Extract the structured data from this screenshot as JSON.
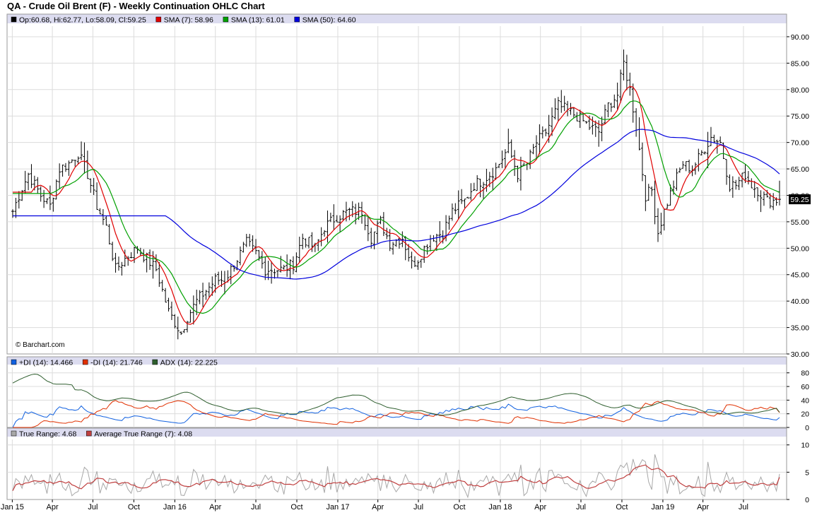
{
  "chart_data": [
    {
      "type": "line",
      "panel": "price",
      "title": "QA - Crude Oil Brent (F) - Weekly Continuation OHLC Chart",
      "attribution": "© Barchart.com",
      "ohlc_legend": "Op:60.68, Hi:62.77, Lo:58.09, Cl:59.25",
      "last_price_label": "59.25",
      "ylim": [
        30,
        92
      ],
      "yticks": [
        30,
        35,
        40,
        45,
        50,
        55,
        60,
        65,
        70,
        75,
        80,
        85,
        90
      ],
      "ytick_labels": [
        "30.00",
        "35.00",
        "40.00",
        "45.00",
        "50.00",
        "55.00",
        "60.00",
        "65.00",
        "70.00",
        "75.00",
        "80.00",
        "85.00",
        "90.00"
      ],
      "x": {
        "start": "2015-01-02",
        "end": "2019-09-20",
        "tick_dates": [
          "2015-01-01",
          "2015-04-01",
          "2015-07-01",
          "2015-10-01",
          "2016-01-01",
          "2016-04-01",
          "2016-07-01",
          "2016-10-01",
          "2017-01-01",
          "2017-04-01",
          "2017-07-01",
          "2017-10-01",
          "2018-01-01",
          "2018-04-01",
          "2018-07-01",
          "2018-10-01",
          "2019-01-01",
          "2019-04-01",
          "2019-07-01"
        ],
        "tick_labels": [
          "Jan 15",
          "Apr",
          "Jul",
          "Oct",
          "Jan 16",
          "Apr",
          "Jul",
          "Oct",
          "Jan 17",
          "Apr",
          "Jul",
          "Oct",
          "Jan 18",
          "Apr",
          "Jul",
          "Oct",
          "Jan 19",
          "Apr",
          "Jul"
        ]
      },
      "close_anchors": [
        [
          "2015-01-02",
          57
        ],
        [
          "2015-01-16",
          60
        ],
        [
          "2015-02-06",
          64
        ],
        [
          "2015-03-06",
          60
        ],
        [
          "2015-03-27",
          58
        ],
        [
          "2015-04-17",
          65
        ],
        [
          "2015-05-08",
          66
        ],
        [
          "2015-05-29",
          68
        ],
        [
          "2015-06-19",
          64
        ],
        [
          "2015-07-10",
          58
        ],
        [
          "2015-07-31",
          54
        ],
        [
          "2015-08-21",
          46
        ],
        [
          "2015-09-11",
          48
        ],
        [
          "2015-10-09",
          50
        ],
        [
          "2015-10-30",
          48
        ],
        [
          "2015-11-20",
          46
        ],
        [
          "2015-12-18",
          38
        ],
        [
          "2016-01-15",
          34
        ],
        [
          "2016-01-29",
          37
        ],
        [
          "2016-02-19",
          40
        ],
        [
          "2016-03-11",
          42
        ],
        [
          "2016-04-01",
          44
        ],
        [
          "2016-04-22",
          44
        ],
        [
          "2016-05-13",
          47
        ],
        [
          "2016-06-10",
          51
        ],
        [
          "2016-07-01",
          49
        ],
        [
          "2016-07-22",
          46
        ],
        [
          "2016-08-12",
          46
        ],
        [
          "2016-09-02",
          46
        ],
        [
          "2016-09-23",
          47
        ],
        [
          "2016-10-14",
          52
        ],
        [
          "2016-11-11",
          50
        ],
        [
          "2016-12-02",
          54
        ],
        [
          "2016-12-30",
          56
        ],
        [
          "2017-01-27",
          57
        ],
        [
          "2017-02-24",
          57
        ],
        [
          "2017-03-17",
          52
        ],
        [
          "2017-04-07",
          55
        ],
        [
          "2017-04-28",
          51
        ],
        [
          "2017-05-26",
          52
        ],
        [
          "2017-06-16",
          47
        ],
        [
          "2017-06-30",
          48
        ],
        [
          "2017-07-28",
          52
        ],
        [
          "2017-08-25",
          53
        ],
        [
          "2017-09-15",
          57
        ],
        [
          "2017-10-13",
          59
        ],
        [
          "2017-11-03",
          62
        ],
        [
          "2017-11-24",
          63
        ],
        [
          "2017-12-22",
          65
        ],
        [
          "2018-01-19",
          69
        ],
        [
          "2018-02-09",
          64
        ],
        [
          "2018-03-02",
          66
        ],
        [
          "2018-03-23",
          70
        ],
        [
          "2018-04-13",
          72
        ],
        [
          "2018-05-11",
          77
        ],
        [
          "2018-06-01",
          76
        ],
        [
          "2018-06-22",
          75
        ],
        [
          "2018-07-20",
          73
        ],
        [
          "2018-08-10",
          72
        ],
        [
          "2018-08-31",
          77
        ],
        [
          "2018-09-21",
          79
        ],
        [
          "2018-10-05",
          85
        ],
        [
          "2018-10-19",
          80
        ],
        [
          "2018-11-02",
          73
        ],
        [
          "2018-11-23",
          60
        ],
        [
          "2018-12-07",
          61
        ],
        [
          "2018-12-21",
          53
        ],
        [
          "2019-01-04",
          57
        ],
        [
          "2019-01-25",
          62
        ],
        [
          "2019-02-15",
          66
        ],
        [
          "2019-03-08",
          65
        ],
        [
          "2019-03-29",
          68
        ],
        [
          "2019-04-19",
          71
        ],
        [
          "2019-05-10",
          70
        ],
        [
          "2019-05-31",
          62
        ],
        [
          "2019-06-14",
          62
        ],
        [
          "2019-07-05",
          64
        ],
        [
          "2019-07-19",
          62
        ],
        [
          "2019-08-02",
          61
        ],
        [
          "2019-08-23",
          59
        ],
        [
          "2019-09-06",
          59
        ],
        [
          "2019-09-20",
          59.25
        ]
      ],
      "series": [
        {
          "name": "SMA (7)",
          "legend": "SMA (7): 58.96",
          "color": "#e00000",
          "period": 7,
          "last": 58.96
        },
        {
          "name": "SMA (13)",
          "legend": "SMA (13): 61.01",
          "color": "#00a000",
          "period": 13,
          "last": 61.01
        },
        {
          "name": "SMA (50)",
          "legend": "SMA (50): 64.60",
          "color": "#0000dd",
          "period": 50,
          "last": 64.6
        }
      ]
    },
    {
      "type": "line",
      "panel": "dmi",
      "ylim": [
        0,
        88
      ],
      "yticks": [
        0,
        20,
        40,
        60,
        80
      ],
      "ytick_labels": [
        "0",
        "20",
        "40",
        "60",
        "80"
      ],
      "series": [
        {
          "name": "+DI (14)",
          "legend": "+DI (14): 14.466",
          "color": "#1060e0",
          "last": 14.466
        },
        {
          "name": "-DI (14)",
          "legend": "-DI (14): 21.746",
          "color": "#e03000",
          "last": 21.746
        },
        {
          "name": "ADX (14)",
          "legend": "ADX (14): 22.225",
          "color": "#2e5e2e",
          "last": 22.225
        }
      ]
    },
    {
      "type": "line",
      "panel": "true-range",
      "ylim": [
        0,
        11
      ],
      "yticks": [
        0,
        5,
        10
      ],
      "ytick_labels": [
        "0",
        "5",
        "10"
      ],
      "series": [
        {
          "name": "True Range",
          "legend": "True Range: 4.68",
          "color": "#a8a8a8",
          "last": 4.68
        },
        {
          "name": "Average True Range (7)",
          "legend": "Average True Range (7): 4.08",
          "color": "#c04040",
          "last": 4.08
        }
      ]
    }
  ],
  "colors": {
    "grid": "#dcdcdc",
    "frame": "#9a9a9a",
    "legend_bar": "#dcdcf0",
    "price_bar": "#000000",
    "last_price_box": "#000000",
    "last_price_text": "#ffffff"
  }
}
